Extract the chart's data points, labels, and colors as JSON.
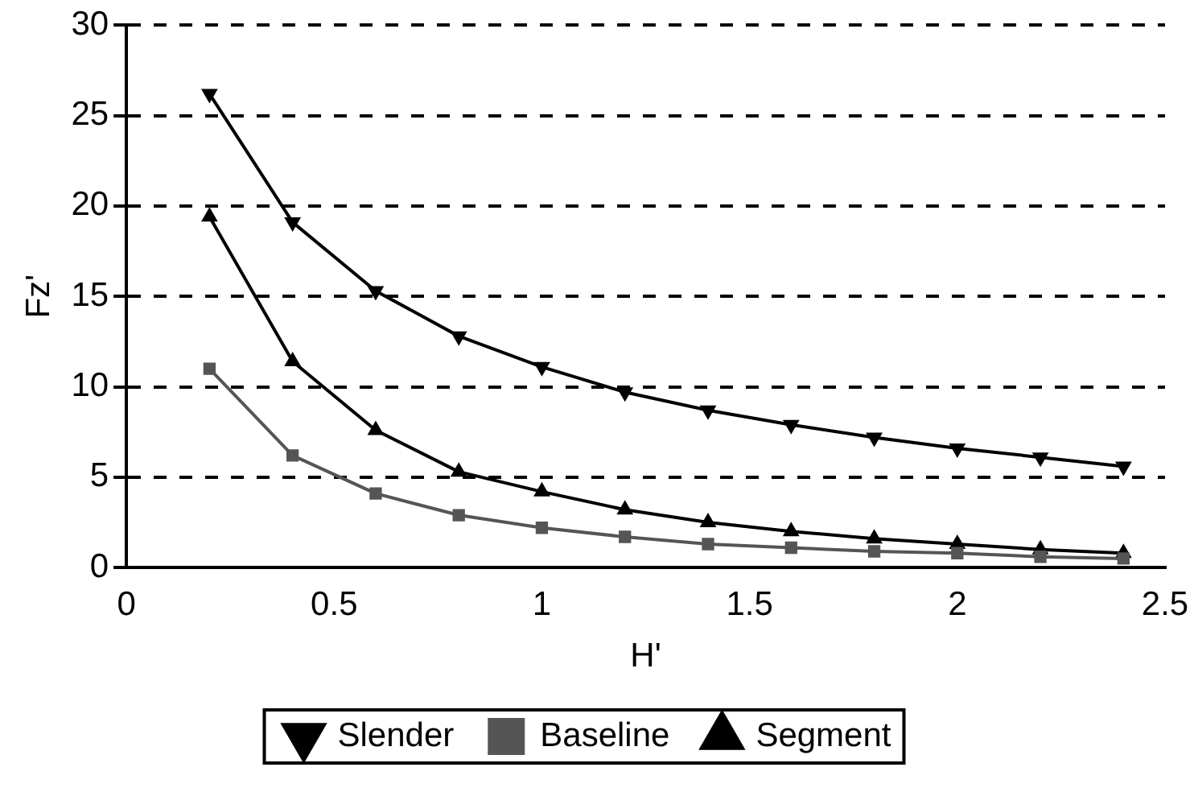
{
  "chart_data": {
    "type": "line",
    "xlabel": "H'",
    "ylabel": "Fz'",
    "x": [
      0.2,
      0.4,
      0.6,
      0.8,
      1.0,
      1.2,
      1.4,
      1.6,
      1.8,
      2.0,
      2.2,
      2.4
    ],
    "series": [
      {
        "name": "Slender",
        "color": "#000000",
        "marker": "triangle_down",
        "values": [
          26.2,
          19.1,
          15.3,
          12.8,
          11.1,
          9.7,
          8.7,
          7.9,
          7.2,
          6.6,
          6.1,
          5.6
        ]
      },
      {
        "name": "Baseline",
        "color": "#555555",
        "marker": "square",
        "values": [
          11,
          6.2,
          4.1,
          2.9,
          2.2,
          1.7,
          1.3,
          1.1,
          0.9,
          0.8,
          0.6,
          0.5
        ]
      },
      {
        "name": "Segment",
        "color": "#000000",
        "marker": "triangle",
        "values": [
          19.4,
          11.4,
          7.6,
          5.3,
          4.2,
          3.2,
          2.5,
          2.0,
          1.6,
          1.3,
          1.0,
          0.8
        ]
      }
    ],
    "xlim": [
      0,
      2.5
    ],
    "xticks": [
      0,
      0.5,
      1,
      1.5,
      2,
      2.5
    ],
    "ylim": [
      0,
      30
    ],
    "yticks": [
      0,
      5,
      10,
      15,
      20,
      25,
      30
    ],
    "grid": "y",
    "line_style": "solid",
    "legend": "bottom"
  }
}
